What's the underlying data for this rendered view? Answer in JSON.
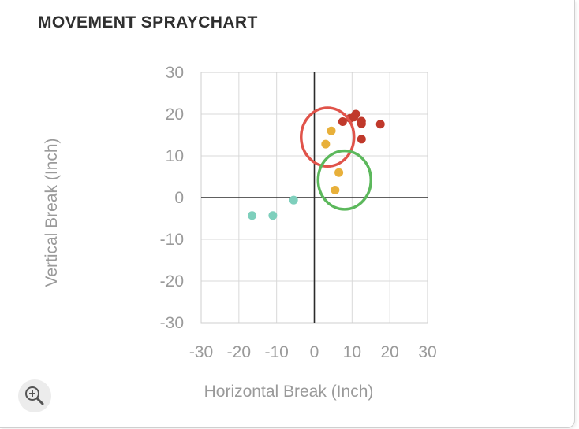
{
  "title": "MOVEMENT SPRAYCHART",
  "zoom_button": {
    "icon": "zoom-in-icon"
  },
  "chart_data": {
    "type": "scatter",
    "title": "MOVEMENT SPRAYCHART",
    "xlabel": "Horizontal Break (Inch)",
    "ylabel": "Vertical Break (Inch)",
    "xlim": [
      -30,
      30
    ],
    "ylim": [
      -30,
      30
    ],
    "xticks": [
      -30,
      -20,
      -10,
      0,
      10,
      20,
      30
    ],
    "yticks": [
      30,
      20,
      10,
      0,
      -10,
      -20,
      -30
    ],
    "grid": true,
    "series": [
      {
        "color": "#c0392b",
        "points": [
          [
            7.5,
            18.2
          ],
          [
            9.5,
            19.0
          ],
          [
            11,
            20.0
          ],
          [
            10.5,
            19.3
          ],
          [
            12.5,
            18.3
          ],
          [
            12.5,
            17.7
          ],
          [
            17.5,
            17.6
          ],
          [
            12.5,
            14.0
          ]
        ]
      },
      {
        "color": "#e8b03a",
        "points": [
          [
            4.5,
            16.0
          ],
          [
            3.0,
            12.8
          ],
          [
            6.5,
            6.0
          ],
          [
            5.5,
            1.8
          ]
        ]
      },
      {
        "color": "#7ecfbc",
        "points": [
          [
            -16.5,
            -4.3
          ],
          [
            -11,
            -4.3
          ],
          [
            -5.5,
            -0.6
          ]
        ]
      }
    ],
    "annotations": [
      {
        "shape": "circle",
        "color": "#e0534a",
        "center": [
          3.5,
          14.5
        ],
        "radius": 7
      },
      {
        "shape": "circle",
        "color": "#5cb85c",
        "center": [
          8.0,
          4.2
        ],
        "radius": 7
      }
    ]
  }
}
